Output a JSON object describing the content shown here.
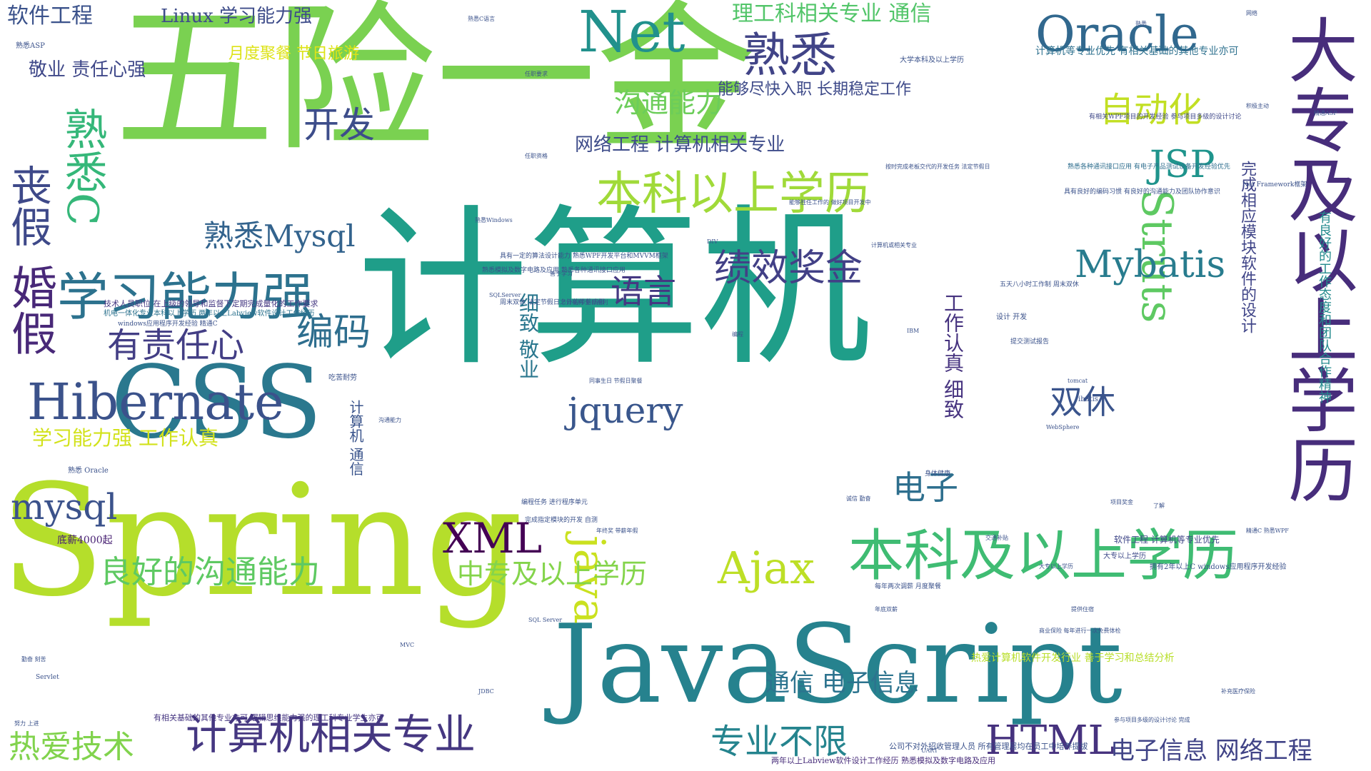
{
  "words": [
    {
      "text": "计算机",
      "color": "#1f9e89"
    },
    {
      "text": "五险一金",
      "color": "#7ad151"
    },
    {
      "text": "Spring",
      "color": "#b5de2b"
    },
    {
      "text": "JavaScript",
      "color": "#26828e"
    },
    {
      "text": "CSS",
      "color": "#2a788e"
    },
    {
      "text": "大专及以上学历",
      "color": "#472d7b"
    },
    {
      "text": "本科及以上学历",
      "color": "#3fbc73"
    },
    {
      "text": "Hibernate",
      "color": "#3b528b"
    },
    {
      "text": "学习能力强",
      "color": "#2c728e"
    },
    {
      "text": "Net",
      "color": "#21918c"
    },
    {
      "text": "Oracle",
      "color": "#31688e"
    },
    {
      "text": "熟悉",
      "color": "#414487"
    },
    {
      "text": "本科以上学历",
      "color": "#a0da39"
    },
    {
      "text": "计算机相关专业",
      "color": "#453781"
    },
    {
      "text": "婚假",
      "color": "#482878"
    },
    {
      "text": "丧假",
      "color": "#3e4989"
    },
    {
      "text": "熟悉C",
      "color": "#35b779"
    },
    {
      "text": "Struts",
      "color": "#5ec962"
    },
    {
      "text": "java",
      "color": "#cae11f"
    },
    {
      "text": "Ajax",
      "color": "#bddf26"
    },
    {
      "text": "XML",
      "color": "#440154"
    },
    {
      "text": "jquery",
      "color": "#39568c"
    },
    {
      "text": "Mybatis",
      "color": "#287c8e"
    },
    {
      "text": "JSP",
      "color": "#1f948c"
    },
    {
      "text": "HTML",
      "color": "#46327e"
    },
    {
      "text": "mysql",
      "color": "#3b528b"
    },
    {
      "text": "有责任心",
      "color": "#433e85"
    },
    {
      "text": "编码",
      "color": "#2e6e8e"
    },
    {
      "text": "绩效奖金",
      "color": "#424086"
    },
    {
      "text": "语言",
      "color": "#453882"
    },
    {
      "text": "开发",
      "color": "#3d4d8a"
    },
    {
      "text": "自动化",
      "color": "#c2df23"
    },
    {
      "text": "熟悉Mysql",
      "color": "#33638d"
    },
    {
      "text": "良好的沟通能力",
      "color": "#5ec962"
    },
    {
      "text": "专业不限",
      "color": "#25848e"
    },
    {
      "text": "中专及以上学历",
      "color": "#84d44b"
    },
    {
      "text": "电子",
      "color": "#2e6f8e"
    },
    {
      "text": "双休",
      "color": "#3a548c"
    },
    {
      "text": "热爱技术",
      "color": "#81d34d"
    },
    {
      "text": "通信 电子信息",
      "color": "#2c738e"
    },
    {
      "text": "电子信息 网络工程",
      "color": "#414487"
    },
    {
      "text": "软件工程",
      "color": "#3b528b"
    },
    {
      "text": "Linux 学习能力强",
      "color": "#3e4c8a"
    },
    {
      "text": "理工科相关专业 通信",
      "color": "#52c569"
    },
    {
      "text": "沟通能力",
      "color": "#6ccd5a"
    },
    {
      "text": "网络工程 计算机相关专业",
      "color": "#3e4c8a"
    },
    {
      "text": "学习能力强 工作认真",
      "color": "#d2e21b"
    },
    {
      "text": "月度聚餐 节日旅游",
      "color": "#dde318"
    },
    {
      "text": "敬业 责任心强",
      "color": "#3f4889"
    },
    {
      "text": "能够尽快入职 长期稳定工作",
      "color": "#3e4a89"
    },
    {
      "text": "工作认真 细致",
      "color": "#46337f"
    },
    {
      "text": "细致 敬业",
      "color": "#2a778e"
    },
    {
      "text": "完成相应模块软件的设计",
      "color": "#404588"
    },
    {
      "text": "有良好的工作态度和团队合作精神",
      "color": "#238a8d"
    },
    {
      "text": "计算机 通信",
      "color": "#3a548c"
    },
    {
      "text": "计算机等专业优先 有相关基础的其他专业亦可",
      "color": "#2d708e"
    },
    {
      "text": "大学本科及以上学历",
      "color": "#3b528b"
    },
    {
      "text": "热爱计算机软件开发行业 善于学习和总结分析",
      "color": "#b8de29"
    },
    {
      "text": "底薪4000起",
      "color": "#482173"
    },
    {
      "text": "有相关基础的其他专业亦可 逻辑思维能力强的理工科专业学生亦可",
      "color": "#453581"
    },
    {
      "text": "两年以上Labview软件设计工作经历 熟悉模拟及数字电路及应用",
      "color": "#472c7a"
    },
    {
      "text": "公司不对外招收管理人员 所有管理层均在员工中培养提拔",
      "color": "#3b528b"
    },
    {
      "text": "大专以上学历",
      "color": "#3e4a89"
    },
    {
      "text": "软件工程 计算机等专业优先",
      "color": "#3f4788"
    },
    {
      "text": "Net Framework框架",
      "color": "#3b528b"
    },
    {
      "text": "熟悉各种通讯接口应用 有电子产品测试设备开发经验优先",
      "color": "#2e6e8e"
    },
    {
      "text": "具有良好的编码习惯 有良好的沟通能力及团队协作意识",
      "color": "#3b528b"
    },
    {
      "text": "有相关WPF项目的开发经验 参与项目多级的设计讨论",
      "color": "#3f4889"
    },
    {
      "text": "技术人员职位 在上级的领导和监督下定期完成量化的工作要求",
      "color": "#453882"
    },
    {
      "text": "机电一体化专业本科以上学历 两年以上Labview软件设计工作经历",
      "color": "#2c728e"
    },
    {
      "text": "windows应用程序开发经验 精通C",
      "color": "#3b528b"
    },
    {
      "text": "按时完成老板交代的开发任务 法定节假日",
      "color": "#3b528b"
    },
    {
      "text": "能够胜任工作的 做好项目开发中",
      "color": "#3b528b"
    },
    {
      "text": "每年两次调薪 月度聚餐",
      "color": "#3b528b"
    },
    {
      "text": "身体健康",
      "color": "#3b528b"
    },
    {
      "text": "周末双休 法定节假日之外的带薪病假",
      "color": "#3b528b"
    },
    {
      "text": "熟悉模拟及数字电路及应用 熟悉各种通讯接口应用",
      "color": "#3b528b"
    },
    {
      "text": "具有一定的算法设计能力 熟悉WPF开发平台和MVVM框架",
      "color": "#3b528b"
    },
    {
      "text": "编程任务 进行程序单元",
      "color": "#3b528b"
    },
    {
      "text": "完成指定模块的开发 自测",
      "color": "#3b528b"
    },
    {
      "text": "熟悉Windows",
      "color": "#3b528b"
    },
    {
      "text": "熟悉ASP",
      "color": "#3b528b"
    },
    {
      "text": "熟悉 Oracle",
      "color": "#3b528b"
    },
    {
      "text": "熟悉C语言",
      "color": "#3b528b"
    },
    {
      "text": "SQLServer",
      "color": "#3b528b"
    },
    {
      "text": "SQL Server",
      "color": "#3b528b"
    },
    {
      "text": "tomcat",
      "color": "#3b528b"
    },
    {
      "text": "ibatis",
      "color": "#3b528b"
    },
    {
      "text": "IBM",
      "color": "#3b528b"
    },
    {
      "text": "MVC",
      "color": "#3b528b"
    },
    {
      "text": "JDBC",
      "color": "#3b528b"
    },
    {
      "text": "Servlet",
      "color": "#3b528b"
    },
    {
      "text": "WebSphere",
      "color": "#3b528b"
    },
    {
      "text": "UART",
      "color": "#3b528b"
    },
    {
      "text": "网络",
      "color": "#3b528b"
    },
    {
      "text": "积极主动",
      "color": "#3b528b"
    },
    {
      "text": "精通ASP",
      "color": "#3b528b"
    },
    {
      "text": "勤奋 刻苦",
      "color": "#3b528b"
    },
    {
      "text": "努力 上进",
      "color": "#3b528b"
    },
    {
      "text": "设计 开发",
      "color": "#3b528b"
    },
    {
      "text": "提交测试报告",
      "color": "#3b528b"
    },
    {
      "text": "五天八小时工作制 周末双休",
      "color": "#3b528b"
    },
    {
      "text": "年终奖 带薪年假",
      "color": "#3b528b"
    },
    {
      "text": "商业保险 每年进行一次免费体检",
      "color": "#3b528b"
    },
    {
      "text": "参与项目多级的设计讨论 完成",
      "color": "#3b528b"
    },
    {
      "text": "拥有2年以上C windows应用程序开发经验",
      "color": "#3b528b"
    },
    {
      "text": "大专以上学历",
      "color": "#3b528b"
    },
    {
      "text": "节日福利 生日福利",
      "color": "#3b528b"
    },
    {
      "text": "同事生日 节假日聚餐",
      "color": "#3b528b"
    },
    {
      "text": "计算机或相关专业",
      "color": "#3b528b"
    },
    {
      "text": "善于学习",
      "color": "#3b528b"
    },
    {
      "text": "吃苦耐劳",
      "color": "#3b528b"
    },
    {
      "text": "沟通能力",
      "color": "#3b528b"
    },
    {
      "text": "项目奖金",
      "color": "#3b528b"
    },
    {
      "text": "编程",
      "color": "#3b528b"
    },
    {
      "text": "DIV",
      "color": "#3b528b"
    },
    {
      "text": "任职要求",
      "color": "#3b528b"
    },
    {
      "text": "任职资格",
      "color": "#3b528b"
    },
    {
      "text": "熟悉",
      "color": "#3b528b"
    },
    {
      "text": "了解",
      "color": "#3b528b"
    },
    {
      "text": "精通C 熟悉WPF",
      "color": "#3b528b"
    },
    {
      "text": "诚信 勤奋",
      "color": "#3b528b"
    },
    {
      "text": "提供住宿",
      "color": "#3b528b"
    },
    {
      "text": "交通补贴",
      "color": "#3b528b"
    },
    {
      "text": "年底双薪",
      "color": "#3b528b"
    },
    {
      "text": "补充医疗保险",
      "color": "#3b528b"
    }
  ]
}
